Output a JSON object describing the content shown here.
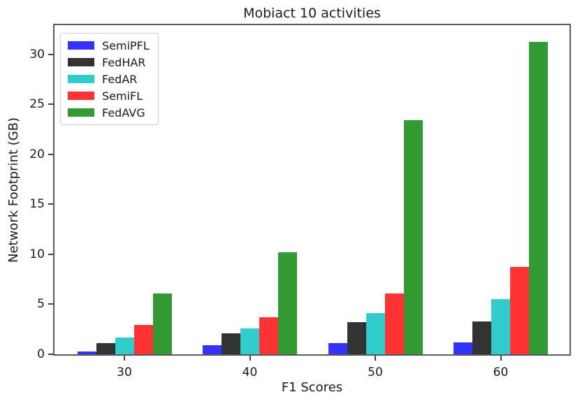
{
  "chart_data": {
    "type": "bar",
    "title": "Mobiact 10 activities",
    "xlabel": "F1 Scores",
    "ylabel": "Network Footprint (GB)",
    "categories": [
      "30",
      "40",
      "50",
      "60"
    ],
    "series": [
      {
        "name": "SemiPFL",
        "color": "#3333ff",
        "values": [
          0.3,
          0.9,
          1.1,
          1.2
        ]
      },
      {
        "name": "FedHAR",
        "color": "#333333",
        "values": [
          1.1,
          2.1,
          3.2,
          3.3
        ]
      },
      {
        "name": "FedAR",
        "color": "#33cccc",
        "values": [
          1.7,
          2.6,
          4.1,
          5.5
        ]
      },
      {
        "name": "SemiFL",
        "color": "#ff3333",
        "values": [
          2.9,
          3.7,
          6.1,
          8.7
        ]
      },
      {
        "name": "FedAVG",
        "color": "#339933",
        "values": [
          6.1,
          10.2,
          23.4,
          31.2
        ]
      }
    ],
    "yticks": [
      0,
      5,
      10,
      15,
      20,
      25,
      30
    ],
    "ylim": [
      0,
      32.9
    ],
    "grid": false,
    "legend_position": "upper left"
  }
}
